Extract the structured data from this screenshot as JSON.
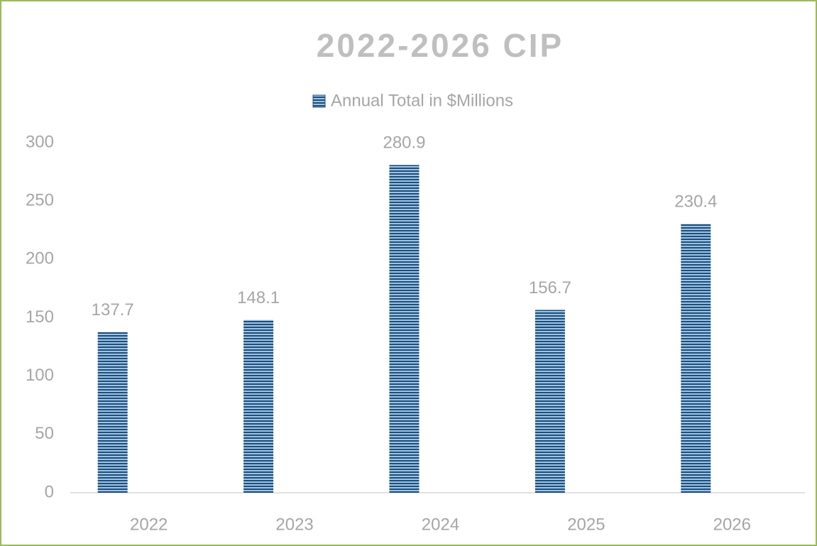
{
  "chart_data": {
    "type": "bar",
    "title": "2022-2026 CIP",
    "categories": [
      "2022",
      "2023",
      "2024",
      "2025",
      "2026"
    ],
    "series": [
      {
        "name": "Annual Total in $Millions",
        "color": "#1f4e79",
        "values": [
          137.7,
          148.1,
          280.9,
          156.7,
          230.4
        ]
      }
    ],
    "ylim": [
      0,
      300
    ],
    "yticks": [
      0,
      50,
      100,
      150,
      200,
      250,
      300
    ],
    "grid": false,
    "legend": "top",
    "data_labels": true
  }
}
